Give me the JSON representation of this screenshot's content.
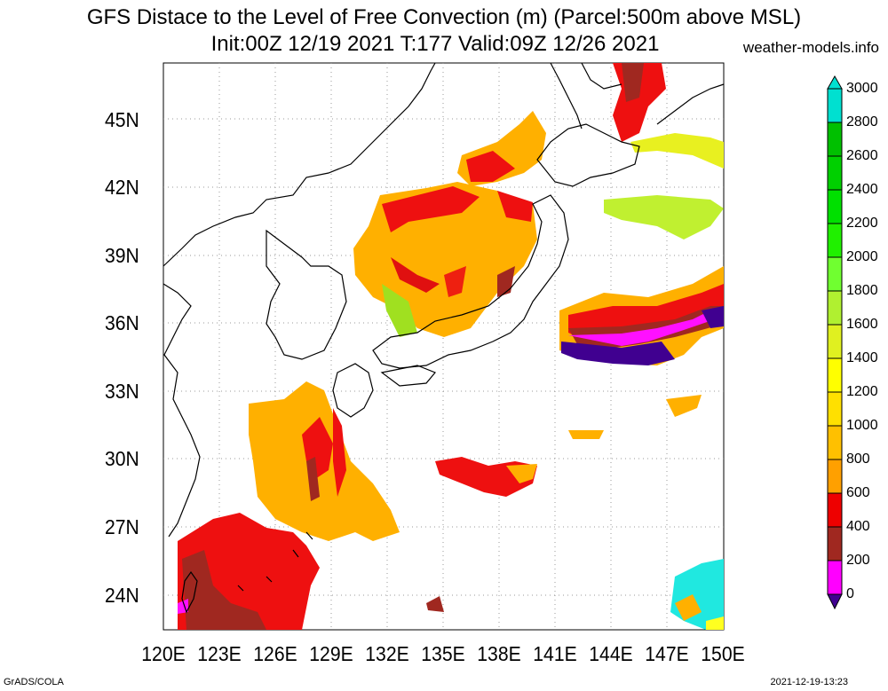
{
  "header": {
    "title_line1": "GFS Distace to the Level of Free Convection (m) (Parcel:500m above MSL)",
    "title_line2": "Init:00Z 12/19 2021 T:177 Valid:09Z 12/26 2021",
    "site": "weather-models.info"
  },
  "footer": {
    "left": "GrADS/COLA",
    "right": "2021-12-19-13:23"
  },
  "axes": {
    "lat_labels": [
      "45N",
      "42N",
      "39N",
      "36N",
      "33N",
      "30N",
      "27N",
      "24N"
    ],
    "lon_labels": [
      "120E",
      "123E",
      "126E",
      "129E",
      "132E",
      "135E",
      "138E",
      "141E",
      "144E",
      "147E",
      "150E"
    ]
  },
  "colorbar": {
    "labels": [
      "3000",
      "2800",
      "2600",
      "2400",
      "2200",
      "2000",
      "1800",
      "1600",
      "1400",
      "1200",
      "1000",
      "800",
      "600",
      "400",
      "200",
      "0"
    ],
    "colors": [
      "#00e0d0",
      "#00c000",
      "#00d000",
      "#00e000",
      "#20f000",
      "#70ff30",
      "#b0f030",
      "#e0f020",
      "#ffff00",
      "#ffe000",
      "#ffc000",
      "#ffa000",
      "#ee0000",
      "#a02820",
      "#ff00ff",
      "#400090"
    ]
  },
  "map": {
    "domain": "East Asia / Japan",
    "lat_range": [
      22.5,
      47.5
    ],
    "lon_range": [
      120,
      150
    ]
  }
}
